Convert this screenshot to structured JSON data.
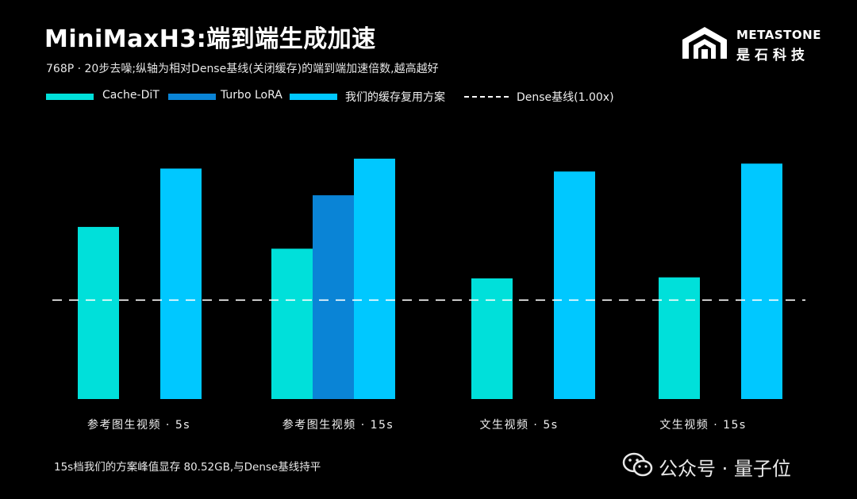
{
  "title": "MiniMaxH3:端到端生成加速",
  "subtitle": "768P · 20步去噪;纵轴为相对Dense基线(关闭缓存)的端到端加速倍数,越高越好",
  "logo": {
    "en": "METASTONE",
    "cn": "是石科技"
  },
  "footnote": "15s档我们的方案峰值显存 80.52GB,与Dense基线持平",
  "watermark": "公众号 · 量子位",
  "colors": {
    "cache_dit": "#00E0DA",
    "turbo_lora": "#0A84D6",
    "ours": "#00C8FF",
    "baseline": "#FFFFFF"
  },
  "chart_data": {
    "type": "bar",
    "title": "MiniMaxH3:端到端生成加速",
    "xlabel": "",
    "ylabel": "",
    "categories": [
      "参考图生视频 · 5s",
      "参考图生视频 · 15s",
      "文生视频 · 5s",
      "文生视频 · 15s"
    ],
    "series": [
      {
        "name": "Cache-DiT",
        "color": "#00E0DA",
        "values": [
          1.74,
          1.52,
          1.22,
          1.23
        ]
      },
      {
        "name": "Turbo LoRA",
        "color": "#0A84D6",
        "values": [
          null,
          2.06,
          null,
          null
        ]
      },
      {
        "name": "我们的缓存复用方案",
        "color": "#00C8FF",
        "values": [
          2.33,
          2.43,
          2.3,
          2.38
        ]
      }
    ],
    "baseline": {
      "name": "Dense基线(1.00x)",
      "value": 1.0
    },
    "ylim": [
      0,
      2.43
    ],
    "y_axis_visible": false,
    "grid": false,
    "legend": "top-left"
  }
}
